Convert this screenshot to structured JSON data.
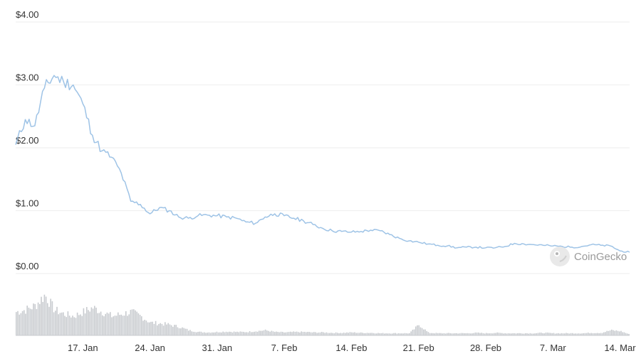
{
  "chart_data": {
    "type": "line",
    "price_series": {
      "x": [
        "2022-01-10",
        "2022-01-11",
        "2022-01-12",
        "2022-01-13",
        "2022-01-14",
        "2022-01-15",
        "2022-01-16",
        "2022-01-17",
        "2022-01-18",
        "2022-01-19",
        "2022-01-20",
        "2022-01-21",
        "2022-01-22",
        "2022-01-23",
        "2022-01-24",
        "2022-01-25",
        "2022-01-26",
        "2022-01-27",
        "2022-01-28",
        "2022-01-29",
        "2022-01-30",
        "2022-01-31",
        "2022-02-01",
        "2022-02-02",
        "2022-02-03",
        "2022-02-04",
        "2022-02-05",
        "2022-02-06",
        "2022-02-07",
        "2022-02-08",
        "2022-02-09",
        "2022-02-10",
        "2022-02-11",
        "2022-02-12",
        "2022-02-13",
        "2022-02-14",
        "2022-02-15",
        "2022-02-16",
        "2022-02-17",
        "2022-02-18",
        "2022-02-19",
        "2022-02-20",
        "2022-02-21",
        "2022-02-22",
        "2022-02-23",
        "2022-02-24",
        "2022-02-25",
        "2022-02-26",
        "2022-02-27",
        "2022-02-28",
        "2022-03-01",
        "2022-03-02",
        "2022-03-03",
        "2022-03-04",
        "2022-03-05",
        "2022-03-06",
        "2022-03-07",
        "2022-03-08",
        "2022-03-09",
        "2022-03-10",
        "2022-03-11",
        "2022-03-12",
        "2022-03-13",
        "2022-03-14",
        "2022-03-15"
      ],
      "y": [
        2.05,
        2.45,
        2.35,
        2.95,
        3.15,
        3.05,
        3.0,
        2.7,
        2.2,
        1.95,
        1.85,
        1.6,
        1.15,
        1.1,
        0.95,
        1.05,
        1.0,
        0.9,
        0.88,
        0.92,
        0.93,
        0.92,
        0.9,
        0.88,
        0.82,
        0.8,
        0.9,
        0.95,
        0.92,
        0.88,
        0.84,
        0.78,
        0.72,
        0.68,
        0.67,
        0.66,
        0.67,
        0.69,
        0.68,
        0.62,
        0.56,
        0.52,
        0.5,
        0.47,
        0.45,
        0.44,
        0.41,
        0.42,
        0.42,
        0.41,
        0.41,
        0.43,
        0.48,
        0.47,
        0.46,
        0.45,
        0.44,
        0.43,
        0.42,
        0.43,
        0.46,
        0.45,
        0.44,
        0.36,
        0.34
      ]
    },
    "volume_series": {
      "relative_values": [
        0.55,
        0.6,
        0.7,
        0.95,
        0.6,
        0.5,
        0.45,
        0.55,
        0.65,
        0.55,
        0.45,
        0.5,
        0.55,
        0.45,
        0.3,
        0.28,
        0.25,
        0.2,
        0.12,
        0.08,
        0.07,
        0.08,
        0.09,
        0.08,
        0.08,
        0.1,
        0.12,
        0.08,
        0.07,
        0.08,
        0.08,
        0.07,
        0.07,
        0.06,
        0.06,
        0.07,
        0.06,
        0.06,
        0.05,
        0.05,
        0.05,
        0.05,
        0.25,
        0.06,
        0.05,
        0.05,
        0.05,
        0.05,
        0.06,
        0.05,
        0.06,
        0.05,
        0.05,
        0.05,
        0.05,
        0.06,
        0.05,
        0.05,
        0.05,
        0.05,
        0.06,
        0.06,
        0.12,
        0.1,
        0.02
      ]
    },
    "y_axis": {
      "ticks": [
        0,
        1,
        2,
        3,
        4
      ],
      "tick_labels": [
        "$0.00",
        "$1.00",
        "$2.00",
        "$3.00",
        "$4.00"
      ],
      "range": [
        0,
        4
      ]
    },
    "x_axis": {
      "tick_dates": [
        "2022-01-17",
        "2022-01-24",
        "2022-01-31",
        "2022-02-07",
        "2022-02-14",
        "2022-02-21",
        "2022-02-28",
        "2022-03-07",
        "2022-03-14"
      ],
      "tick_labels": [
        "17. Jan",
        "24. Jan",
        "31. Jan",
        "7. Feb",
        "14. Feb",
        "21. Feb",
        "28. Feb",
        "7. Mar",
        "14. Mar"
      ],
      "range": [
        "2022-01-10",
        "2022-03-15"
      ]
    },
    "grid": true,
    "colors": {
      "line": "#9ec3e6",
      "grid": "#eeeeee",
      "volume": "#c8cbcf",
      "tick_text": "#333333",
      "watermark": "#9a9a9a"
    }
  },
  "watermark": {
    "text": "CoinGecko",
    "icon": "coingecko-logo-icon"
  }
}
